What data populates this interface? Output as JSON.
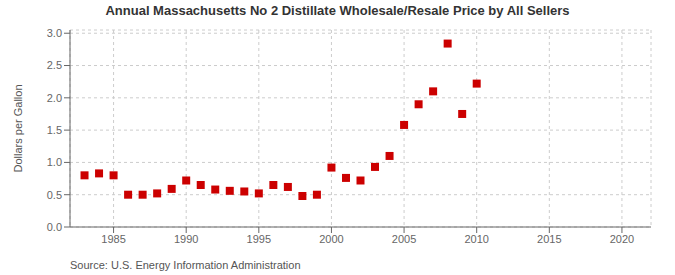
{
  "chart_data": {
    "type": "scatter",
    "title": "Annual Massachusetts No 2 Distillate Wholesale/Resale Price by All Sellers",
    "ylabel": "Dollars per Gallon",
    "annotations": [
      "Source: U.S. Energy Information Administration"
    ],
    "x": [
      1983,
      1984,
      1985,
      1986,
      1987,
      1988,
      1989,
      1990,
      1991,
      1992,
      1993,
      1994,
      1995,
      1996,
      1997,
      1998,
      1999,
      2000,
      2001,
      2002,
      2003,
      2004,
      2005,
      2006,
      2007,
      2008,
      2009,
      2010
    ],
    "values": [
      0.8,
      0.83,
      0.8,
      0.5,
      0.5,
      0.52,
      0.59,
      0.72,
      0.65,
      0.58,
      0.56,
      0.55,
      0.52,
      0.65,
      0.62,
      0.48,
      0.5,
      0.92,
      0.76,
      0.72,
      0.93,
      1.1,
      1.58,
      1.9,
      2.1,
      2.84,
      1.75,
      2.22
    ],
    "color": "#cc0000",
    "marker": "square",
    "grid": true,
    "xlim": [
      1982,
      2022
    ],
    "ylim": [
      0.0,
      3.05
    ],
    "xticks": [
      1985,
      1990,
      1995,
      2000,
      2005,
      2010,
      2015,
      2020
    ],
    "yticks": [
      {
        "value": 0,
        "label": "0.0"
      },
      0.5,
      {
        "value": 1,
        "label": "1.0"
      },
      1.5,
      {
        "value": 2,
        "label": "2.0"
      },
      2.5,
      {
        "value": 3,
        "label": "3.0"
      }
    ]
  }
}
